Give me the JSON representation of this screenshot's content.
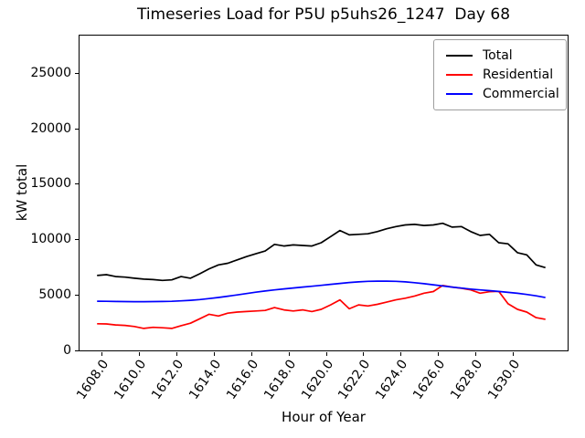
{
  "chart_data": {
    "type": "line",
    "title": "Timeseries Load for P5U p5uhs26_1247  Day 68",
    "xlabel": "Hour of Year",
    "ylabel": "kW total",
    "xlim": [
      1606.8125,
      1632.9375
    ],
    "ylim": [
      0,
      28350
    ],
    "grid": false,
    "legend_position": "upper right",
    "background": "#ffffff",
    "x_ticks": [
      1608,
      1610,
      1612,
      1614,
      1616,
      1618,
      1620,
      1622,
      1624,
      1626,
      1628,
      1630
    ],
    "x_tick_labels": [
      "1608.0",
      "1610.0",
      "1612.0",
      "1614.0",
      "1616.0",
      "1618.0",
      "1620.0",
      "1622.0",
      "1624.0",
      "1626.0",
      "1628.0",
      "1630.0"
    ],
    "y_ticks": [
      0,
      5000,
      10000,
      15000,
      20000,
      25000
    ],
    "y_tick_labels": [
      "0",
      "5000",
      "10000",
      "15000",
      "20000",
      "25000"
    ],
    "x": [
      1607.75,
      1608.25,
      1608.75,
      1609.25,
      1609.75,
      1610.25,
      1610.75,
      1611.25,
      1611.75,
      1612.25,
      1612.75,
      1613.25,
      1613.75,
      1614.25,
      1614.75,
      1615.25,
      1615.75,
      1616.25,
      1616.75,
      1617.25,
      1617.75,
      1618.25,
      1618.75,
      1619.25,
      1619.75,
      1620.25,
      1620.75,
      1621.25,
      1621.75,
      1622.25,
      1622.75,
      1623.25,
      1623.75,
      1624.25,
      1624.75,
      1625.25,
      1625.75,
      1626.25,
      1626.75,
      1627.25,
      1627.75,
      1628.25,
      1628.75,
      1629.25,
      1629.75,
      1630.25,
      1630.75,
      1631.25,
      1631.75
    ],
    "series": [
      {
        "name": "Total",
        "color": "#000000",
        "values": [
          6750,
          6820,
          6650,
          6600,
          6500,
          6420,
          6380,
          6300,
          6350,
          6650,
          6500,
          6900,
          7350,
          7700,
          7850,
          8150,
          8450,
          8700,
          8950,
          9550,
          9400,
          9500,
          9450,
          9400,
          9700,
          10250,
          10800,
          10400,
          10450,
          10500,
          10700,
          10950,
          11150,
          11300,
          11350,
          11250,
          11300,
          11450,
          11100,
          11150,
          10700,
          10350,
          10450,
          9700,
          9600,
          8800,
          8600,
          7700,
          7450
        ]
      },
      {
        "name": "Residential",
        "color": "#ff0000",
        "values": [
          2400,
          2380,
          2290,
          2250,
          2150,
          1980,
          2080,
          2040,
          1980,
          2230,
          2450,
          2850,
          3250,
          3100,
          3350,
          3450,
          3500,
          3550,
          3600,
          3850,
          3650,
          3550,
          3650,
          3500,
          3700,
          4100,
          4550,
          3750,
          4100,
          4000,
          4150,
          4350,
          4550,
          4700,
          4900,
          5150,
          5300,
          5850,
          5700,
          5600,
          5450,
          5150,
          5280,
          5320,
          4200,
          3700,
          3450,
          2950,
          2800
        ]
      },
      {
        "name": "Commercial",
        "color": "#0000ff",
        "values": [
          4430,
          4420,
          4405,
          4395,
          4390,
          4390,
          4395,
          4405,
          4425,
          4460,
          4510,
          4580,
          4670,
          4770,
          4880,
          5000,
          5120,
          5240,
          5350,
          5450,
          5540,
          5620,
          5700,
          5780,
          5860,
          5950,
          6030,
          6110,
          6170,
          6220,
          6240,
          6240,
          6220,
          6170,
          6100,
          6010,
          5910,
          5800,
          5700,
          5610,
          5520,
          5450,
          5380,
          5310,
          5230,
          5140,
          5040,
          4910,
          4760
        ]
      }
    ]
  }
}
